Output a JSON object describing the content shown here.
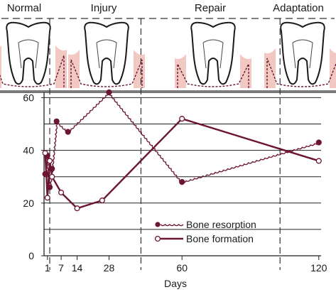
{
  "phases": [
    "Normal",
    "Injury",
    "Repair",
    "Adaptation"
  ],
  "chart_data": {
    "type": "line",
    "xlabel": "Days",
    "ylabel": "",
    "xlim": [
      -0.5,
      121
    ],
    "ylim": [
      0,
      62
    ],
    "x_ticks": [
      1,
      7,
      14,
      28,
      60,
      120
    ],
    "y_ticks": [
      0,
      20,
      40,
      60
    ],
    "grid": true,
    "legend_position": "bottom-right",
    "colors": {
      "accent": "#6b1530",
      "gum": "#f2c9c2",
      "grid": "#222222"
    },
    "phase_boundaries_days": [
      2,
      42,
      103
    ],
    "series": [
      {
        "name": "Bone resorption",
        "style": "wavy-filled-markers",
        "points": [
          [
            0,
            31
          ],
          [
            1,
            38
          ],
          [
            2,
            26
          ],
          [
            3,
            33
          ],
          [
            5,
            51
          ],
          [
            10,
            47
          ],
          [
            28,
            62
          ],
          [
            60,
            28
          ],
          [
            120,
            43
          ]
        ]
      },
      {
        "name": "Bone formation",
        "style": "solid-open-markers",
        "points": [
          [
            0,
            39
          ],
          [
            1,
            22
          ],
          [
            2,
            36
          ],
          [
            3,
            30
          ],
          [
            7,
            24
          ],
          [
            14,
            18
          ],
          [
            25,
            21
          ],
          [
            60,
            52
          ],
          [
            120,
            36
          ]
        ]
      }
    ]
  }
}
